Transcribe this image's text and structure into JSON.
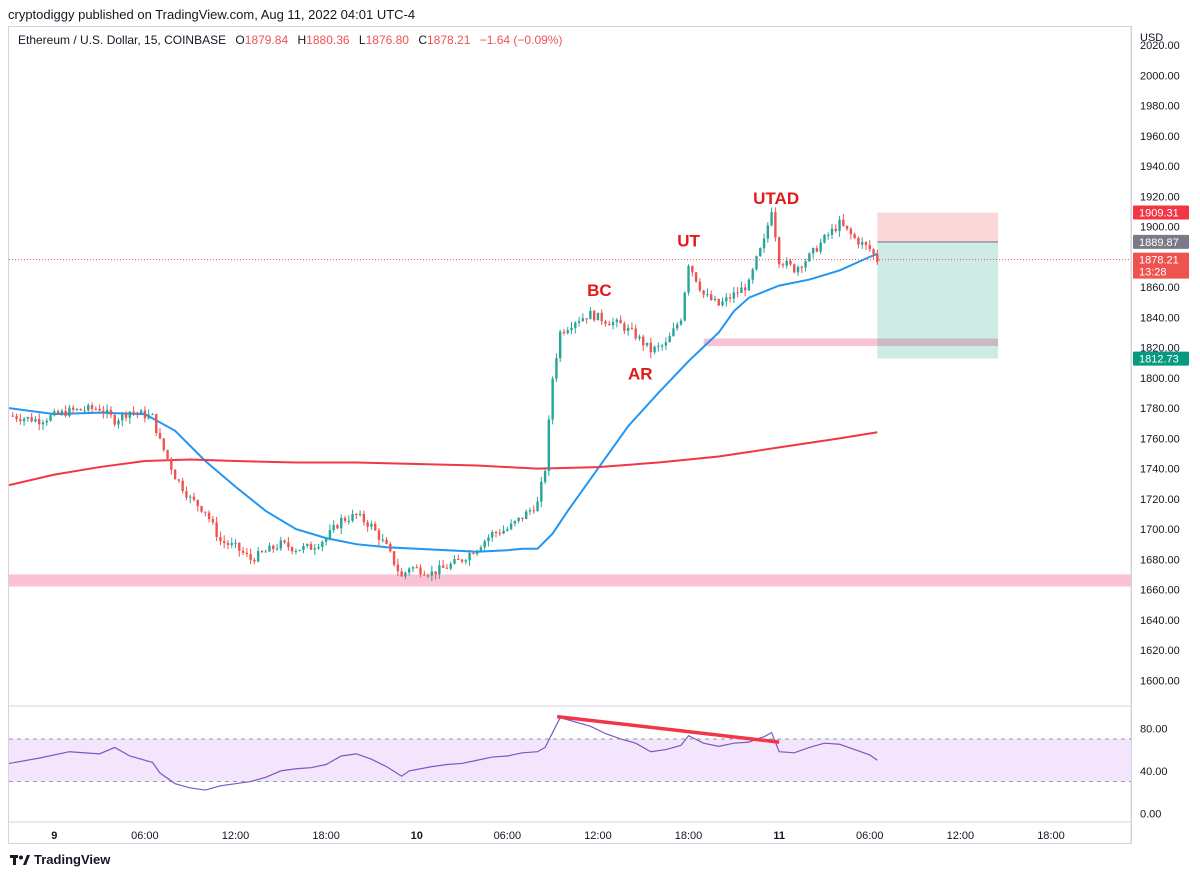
{
  "header": {
    "published": "cryptodiggy published on TradingView.com, Aug 11, 2022 04:01 UTC-4"
  },
  "legend": {
    "symbol": "Ethereum / U.S. Dollar, 15, COINBASE",
    "o_label": "O",
    "o_value": "1879.84",
    "h_label": "H",
    "h_value": "1880.36",
    "l_label": "L",
    "l_value": "1876.80",
    "c_label": "C",
    "c_value": "1878.21",
    "change": "−1.64 (−0.09%)"
  },
  "footer": {
    "brand": "TradingView"
  },
  "colors": {
    "up": "#26a69a",
    "down": "#ef5350",
    "ma_fast": "#2196f3",
    "ma_slow": "#f23645",
    "zone": "#f8bbd0",
    "rsi_line": "#7e57c2",
    "rsi_band": "#f3e5fc",
    "marker": "#e31919",
    "stop": "#f23645",
    "target": "#089981",
    "entry": "#787b86"
  },
  "chart_data": {
    "type": "candlestick",
    "title": "Ethereum / U.S. Dollar, 15, COINBASE",
    "currency": "USD",
    "y_ticks": [
      "2020.00",
      "2000.00",
      "1980.00",
      "1960.00",
      "1940.00",
      "1920.00",
      "1900.00",
      "1880.00",
      "1860.00",
      "1840.00",
      "1820.00",
      "1800.00",
      "1780.00",
      "1760.00",
      "1740.00",
      "1720.00",
      "1700.00",
      "1680.00",
      "1660.00",
      "1640.00",
      "1620.00",
      "1600.00"
    ],
    "ylim": [
      1583,
      2032
    ],
    "x_ticks": [
      {
        "label": "9",
        "hours": 0
      },
      {
        "label": "06:00",
        "hours": 6
      },
      {
        "label": "12:00",
        "hours": 12
      },
      {
        "label": "18:00",
        "hours": 18
      },
      {
        "label": "10",
        "hours": 24
      },
      {
        "label": "06:00",
        "hours": 30
      },
      {
        "label": "12:00",
        "hours": 36
      },
      {
        "label": "18:00",
        "hours": 42
      },
      {
        "label": "11",
        "hours": 48
      },
      {
        "label": "06:00",
        "hours": 54
      },
      {
        "label": "12:00",
        "hours": 60
      },
      {
        "label": "18:00",
        "hours": 66
      }
    ],
    "x_range_hours": [
      -3.0,
      71.3
    ],
    "price_path": [
      [
        -3.0,
        1775
      ],
      [
        -1,
        1772
      ],
      [
        1,
        1778
      ],
      [
        3,
        1780
      ],
      [
        4,
        1772
      ],
      [
        5,
        1778
      ],
      [
        6.5,
        1774
      ],
      [
        7,
        1758
      ],
      [
        8,
        1735
      ],
      [
        9,
        1720
      ],
      [
        10,
        1712
      ],
      [
        11,
        1692
      ],
      [
        12,
        1688
      ],
      [
        13,
        1680
      ],
      [
        14,
        1685
      ],
      [
        15,
        1690
      ],
      [
        16,
        1687
      ],
      [
        17,
        1688
      ],
      [
        18,
        1694
      ],
      [
        19,
        1706
      ],
      [
        20,
        1709
      ],
      [
        21,
        1702
      ],
      [
        22,
        1688
      ],
      [
        23,
        1668
      ],
      [
        23.5,
        1675
      ],
      [
        25,
        1671
      ],
      [
        26,
        1675
      ],
      [
        27,
        1680
      ],
      [
        28,
        1688
      ],
      [
        29,
        1697
      ],
      [
        30,
        1700
      ],
      [
        31,
        1708
      ],
      [
        32,
        1717
      ],
      [
        32.5,
        1740
      ],
      [
        33,
        1800
      ],
      [
        33.5,
        1830
      ],
      [
        34.5,
        1838
      ],
      [
        35.5,
        1842
      ],
      [
        36.5,
        1838
      ],
      [
        37.5,
        1835
      ],
      [
        38.5,
        1828
      ],
      [
        39.5,
        1818
      ],
      [
        40.5,
        1822
      ],
      [
        41.5,
        1840
      ],
      [
        42,
        1876
      ],
      [
        43,
        1855
      ],
      [
        44,
        1848
      ],
      [
        45,
        1855
      ],
      [
        46,
        1862
      ],
      [
        46.5,
        1878
      ],
      [
        47,
        1890
      ],
      [
        47.5,
        1912
      ],
      [
        48,
        1878
      ],
      [
        49,
        1872
      ],
      [
        50,
        1880
      ],
      [
        51,
        1892
      ],
      [
        52,
        1902
      ],
      [
        53,
        1892
      ],
      [
        54,
        1885
      ],
      [
        54.5,
        1878
      ]
    ],
    "ohlc_last": {
      "open": 1879.84,
      "high": 1880.36,
      "low": 1876.8,
      "close": 1878.21
    },
    "series": [
      {
        "name": "MA fast",
        "color": "#2196f3",
        "points": [
          [
            -3,
            1780
          ],
          [
            0,
            1776
          ],
          [
            3,
            1777
          ],
          [
            6,
            1776
          ],
          [
            8,
            1765
          ],
          [
            10,
            1745
          ],
          [
            12,
            1728
          ],
          [
            14,
            1712
          ],
          [
            16,
            1700
          ],
          [
            18,
            1694
          ],
          [
            20,
            1690
          ],
          [
            22,
            1688
          ],
          [
            24,
            1687
          ],
          [
            26,
            1686
          ],
          [
            28,
            1685
          ],
          [
            30,
            1686
          ],
          [
            31,
            1687
          ],
          [
            32,
            1687
          ],
          [
            33,
            1697
          ],
          [
            34,
            1712
          ],
          [
            36,
            1740
          ],
          [
            38,
            1768
          ],
          [
            40,
            1790
          ],
          [
            42,
            1811
          ],
          [
            44,
            1830
          ],
          [
            45,
            1844
          ],
          [
            46,
            1853
          ],
          [
            48,
            1861
          ],
          [
            50,
            1865
          ],
          [
            52,
            1871
          ],
          [
            54,
            1880
          ],
          [
            54.5,
            1882
          ]
        ]
      },
      {
        "name": "MA slow",
        "color": "#f23645",
        "points": [
          [
            -3,
            1729
          ],
          [
            0,
            1736
          ],
          [
            3,
            1741
          ],
          [
            6,
            1745
          ],
          [
            9,
            1746
          ],
          [
            12,
            1745
          ],
          [
            16,
            1744
          ],
          [
            20,
            1744
          ],
          [
            24,
            1743
          ],
          [
            28,
            1742
          ],
          [
            30,
            1741
          ],
          [
            32,
            1740
          ],
          [
            36,
            1741
          ],
          [
            40,
            1744
          ],
          [
            44,
            1748
          ],
          [
            48,
            1754
          ],
          [
            52,
            1760
          ],
          [
            54.5,
            1764
          ]
        ]
      }
    ],
    "zones": [
      {
        "name": "support",
        "low": 1662,
        "high": 1670,
        "from_hours": -3.0,
        "to_hours": 71.3
      },
      {
        "name": "resistance",
        "low": 1821,
        "high": 1826,
        "from_hours": 43.0,
        "to_hours": 62.5
      }
    ],
    "annotations": [
      {
        "text": "BC",
        "hours": 36.1,
        "price": 1854
      },
      {
        "text": "AR",
        "hours": 38.8,
        "price": 1799
      },
      {
        "text": "UT",
        "hours": 42.0,
        "price": 1887
      },
      {
        "text": "UTAD",
        "hours": 47.8,
        "price": 1915
      }
    ],
    "position": {
      "stop": 1909.31,
      "entry": 1889.87,
      "target": 1812.73,
      "from_hours": 54.5,
      "to_hours": 62.5
    },
    "price_tags": [
      {
        "label": "1909.31",
        "role": "stop"
      },
      {
        "label": "1889.87",
        "role": "entry"
      },
      {
        "label": "1878.21",
        "sub": "13:28",
        "role": "last"
      },
      {
        "label": "1812.73",
        "role": "target"
      }
    ],
    "last_price": 1878.21,
    "rsi": {
      "y_ticks": [
        "80.00",
        "40.00",
        "0.00"
      ],
      "ylim": [
        -8,
        100
      ],
      "band": [
        30,
        70
      ],
      "divergence": {
        "from_hours": 33.3,
        "from_value": 91,
        "to_hours": 48,
        "to_value": 67
      },
      "points": [
        [
          -3,
          47
        ],
        [
          -1,
          52
        ],
        [
          1,
          58
        ],
        [
          3,
          56
        ],
        [
          4,
          62
        ],
        [
          5,
          54
        ],
        [
          6.5,
          48
        ],
        [
          7,
          38
        ],
        [
          8,
          28
        ],
        [
          9,
          24
        ],
        [
          10,
          22
        ],
        [
          11,
          26
        ],
        [
          12,
          28
        ],
        [
          13,
          30
        ],
        [
          14,
          34
        ],
        [
          15,
          40
        ],
        [
          16,
          42
        ],
        [
          17,
          43
        ],
        [
          18,
          46
        ],
        [
          19,
          54
        ],
        [
          20,
          56
        ],
        [
          21,
          51
        ],
        [
          22,
          44
        ],
        [
          23,
          35
        ],
        [
          23.5,
          40
        ],
        [
          25,
          44
        ],
        [
          26,
          46
        ],
        [
          27,
          47
        ],
        [
          28,
          50
        ],
        [
          29,
          53
        ],
        [
          30,
          54
        ],
        [
          31,
          57
        ],
        [
          32,
          58
        ],
        [
          32.5,
          62
        ],
        [
          33,
          76
        ],
        [
          33.5,
          90
        ],
        [
          34.5,
          86
        ],
        [
          35.5,
          82
        ],
        [
          36.5,
          75
        ],
        [
          37.5,
          70
        ],
        [
          38.5,
          66
        ],
        [
          39.5,
          58
        ],
        [
          40.5,
          60
        ],
        [
          41.5,
          64
        ],
        [
          42,
          73
        ],
        [
          43,
          66
        ],
        [
          44,
          63
        ],
        [
          45,
          66
        ],
        [
          46,
          67
        ],
        [
          46.5,
          70
        ],
        [
          47,
          72
        ],
        [
          47.5,
          76
        ],
        [
          48,
          58
        ],
        [
          49,
          57
        ],
        [
          50,
          62
        ],
        [
          51,
          66
        ],
        [
          52,
          65
        ],
        [
          53,
          60
        ],
        [
          54,
          55
        ],
        [
          54.5,
          50
        ]
      ]
    }
  }
}
